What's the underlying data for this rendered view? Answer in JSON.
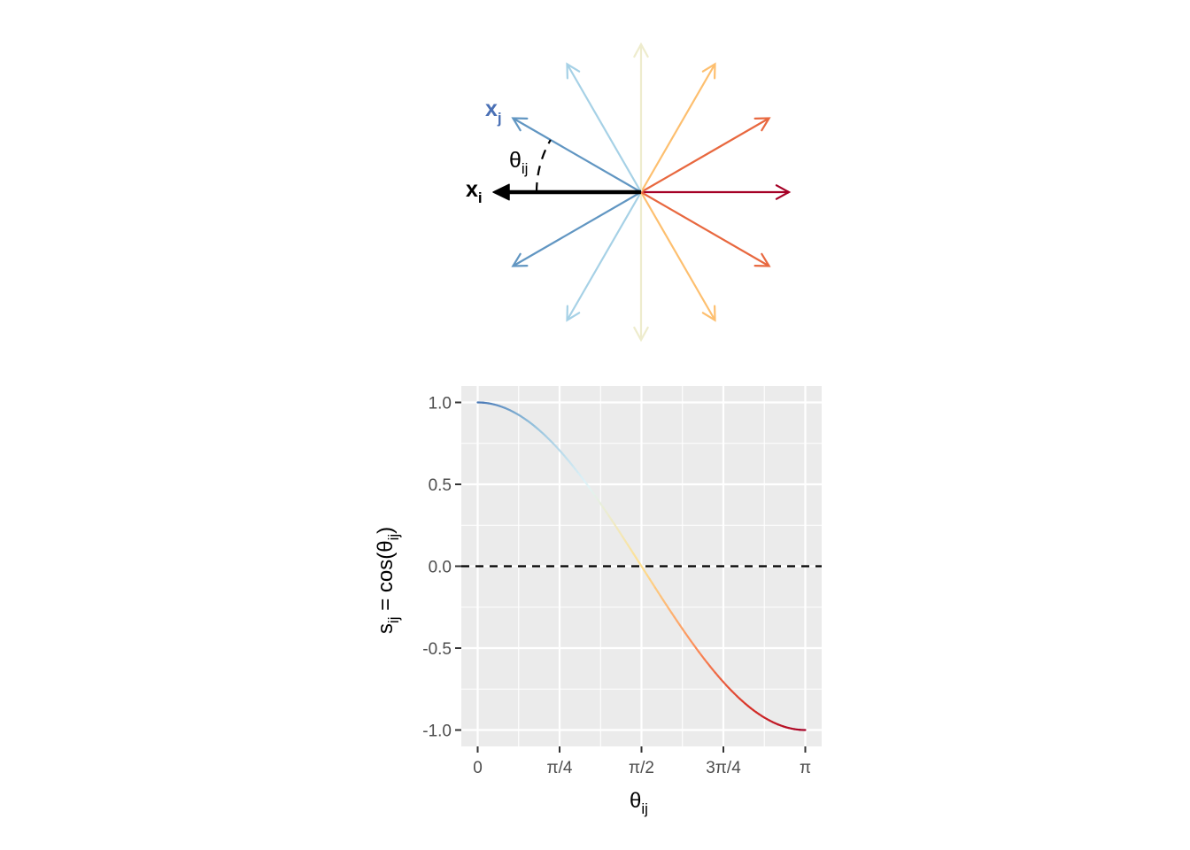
{
  "colors": {
    "palette": [
      "#4575b4",
      "#91bfdb",
      "#e0f3f8",
      "#fee090",
      "#fc8d59",
      "#d73027",
      "#a50026"
    ],
    "fan_arrows": {
      "0": "#a50026",
      "30": "#e8683f",
      "60": "#fdbf6f",
      "90": "#eeeccd",
      "120": "#a6d1e6",
      "150": "#6196c2",
      "180": "#000000",
      "210": "#6196c2",
      "240": "#a6d1e6",
      "270": "#eeeccd",
      "300": "#fdbf6f",
      "330": "#e8683f"
    },
    "xj_label": "#4a70b5",
    "panel_bg": "#ebebeb",
    "grid": "#ffffff",
    "tick_text": "#4d4d4d"
  },
  "vector_diagram": {
    "arrow_angles_deg": [
      0,
      30,
      60,
      90,
      120,
      150,
      180,
      210,
      240,
      270,
      300,
      330
    ],
    "highlight_angle_deg": 180,
    "labels": {
      "xi_main": "x",
      "xi_sub": "i",
      "xj_main": "x",
      "xj_sub": "j",
      "theta_main": "θ",
      "theta_sub": "ij"
    }
  },
  "chart_data": {
    "type": "line",
    "function": "cos",
    "x_range": [
      0,
      3.14159265
    ],
    "xlim": [
      0,
      3.14159265
    ],
    "ylim": [
      -1.0,
      1.0
    ],
    "x_ticks": [
      {
        "value": 0,
        "label": "0"
      },
      {
        "value": 0.78539816,
        "label": "π/4"
      },
      {
        "value": 1.57079633,
        "label": "π/2"
      },
      {
        "value": 2.35619449,
        "label": "3π/4"
      },
      {
        "value": 3.14159265,
        "label": "π"
      }
    ],
    "y_ticks": [
      {
        "value": 1.0,
        "label": "1.0"
      },
      {
        "value": 0.5,
        "label": "0.5"
      },
      {
        "value": 0.0,
        "label": "0.0"
      },
      {
        "value": -0.5,
        "label": "-0.5"
      },
      {
        "value": -1.0,
        "label": "-1.0"
      }
    ],
    "reference_line": {
      "y": 0,
      "style": "dashed"
    },
    "color_gradient": "blue-to-red along x",
    "grid": true,
    "xlabel": {
      "main": "θ",
      "sub": "ij"
    },
    "ylabel": {
      "s": "s",
      "s_sub": "ij",
      "eq": " = cos(",
      "theta": "θ",
      "theta_sub": "ij",
      "close": ")"
    }
  }
}
